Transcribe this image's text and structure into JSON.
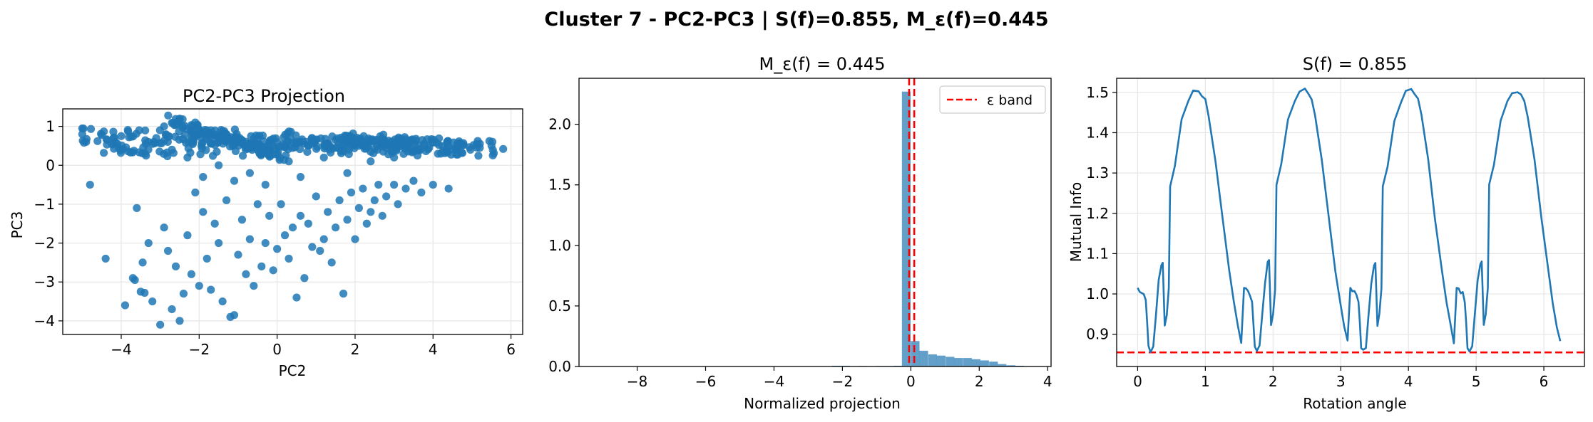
{
  "figure": {
    "suptitle": "Cluster 7 - PC2-PC3 | S(f)=0.855, M_ε(f)=0.445"
  },
  "colors": {
    "primary": "#1f77b4",
    "reference": "#ff0000",
    "grid": "#e6e6e6"
  },
  "chart_data": [
    {
      "type": "scatter",
      "title": "PC2-PC3 Projection",
      "xlabel": "PC2",
      "ylabel": "PC3",
      "xlim": [
        -5.5,
        6.3
      ],
      "ylim": [
        -4.35,
        1.45
      ],
      "xticks": [
        -4,
        -2,
        0,
        2,
        4,
        6
      ],
      "xtick_labels": [
        "−4",
        "−2",
        "0",
        "2",
        "4",
        "6"
      ],
      "yticks": [
        -4,
        -3,
        -2,
        -1,
        0,
        1
      ],
      "ytick_labels": [
        "−4",
        "−3",
        "−2",
        "−1",
        "0",
        "1"
      ],
      "grid": true,
      "color": "#1f77b4",
      "points": [
        [
          -5.0,
          0.8
        ],
        [
          -4.9,
          0.6
        ],
        [
          -4.8,
          -0.5
        ],
        [
          -4.5,
          0.78
        ],
        [
          -4.4,
          -2.4
        ],
        [
          -4.2,
          0.7
        ],
        [
          -4.0,
          0.75
        ],
        [
          -3.9,
          -3.6
        ],
        [
          -3.8,
          0.72
        ],
        [
          -3.7,
          -2.9
        ],
        [
          -3.65,
          -2.95
        ],
        [
          -3.6,
          -1.1
        ],
        [
          -3.5,
          -3.25
        ],
        [
          -3.45,
          -2.5
        ],
        [
          -3.4,
          -3.28
        ],
        [
          -3.3,
          -2.0
        ],
        [
          -3.2,
          -3.5
        ],
        [
          -3.1,
          0.7
        ],
        [
          -3.0,
          -4.1
        ],
        [
          -2.9,
          -1.6
        ],
        [
          -2.8,
          -2.2
        ],
        [
          -2.7,
          -3.7
        ],
        [
          -2.6,
          -2.6
        ],
        [
          -2.5,
          -4.0
        ],
        [
          -2.4,
          -3.3
        ],
        [
          -2.3,
          -1.8
        ],
        [
          -2.2,
          -2.8
        ],
        [
          -2.1,
          -0.7
        ],
        [
          -2.0,
          -3.1
        ],
        [
          -1.9,
          -1.2
        ],
        [
          -1.8,
          -2.4
        ],
        [
          -1.7,
          -3.2
        ],
        [
          -1.6,
          -1.5
        ],
        [
          -1.5,
          -2.0
        ],
        [
          -1.4,
          -3.5
        ],
        [
          -1.3,
          -0.9
        ],
        [
          -1.2,
          -3.9
        ],
        [
          -1.1,
          -3.85
        ],
        [
          -1.0,
          -2.3
        ],
        [
          -0.9,
          -1.4
        ],
        [
          -0.8,
          -2.8
        ],
        [
          -0.7,
          -1.9
        ],
        [
          -0.6,
          -3.1
        ],
        [
          -0.5,
          -1.0
        ],
        [
          -0.4,
          -2.6
        ],
        [
          -0.3,
          -2.0
        ],
        [
          -0.2,
          -1.3
        ],
        [
          -0.1,
          -2.7
        ],
        [
          0.0,
          -2.15
        ],
        [
          0.1,
          -1.0
        ],
        [
          0.2,
          -1.8
        ],
        [
          0.3,
          -2.4
        ],
        [
          0.4,
          -1.6
        ],
        [
          0.5,
          -3.4
        ],
        [
          0.6,
          -1.3
        ],
        [
          0.7,
          -2.9
        ],
        [
          0.8,
          -1.5
        ],
        [
          0.9,
          -2.1
        ],
        [
          1.0,
          -0.8
        ],
        [
          1.1,
          -2.2
        ],
        [
          1.2,
          -1.9
        ],
        [
          1.3,
          -1.2
        ],
        [
          1.4,
          -2.5
        ],
        [
          1.5,
          -1.6
        ],
        [
          1.6,
          -0.9
        ],
        [
          1.7,
          -3.3
        ],
        [
          1.8,
          -1.4
        ],
        [
          1.9,
          -0.7
        ],
        [
          2.0,
          -1.9
        ],
        [
          2.1,
          -1.1
        ],
        [
          2.2,
          -0.6
        ],
        [
          2.3,
          -1.5
        ],
        [
          2.4,
          -1.2
        ],
        [
          2.5,
          -0.9
        ],
        [
          2.6,
          -0.5
        ],
        [
          2.7,
          -1.3
        ],
        [
          2.8,
          -0.8
        ],
        [
          3.0,
          -0.5
        ],
        [
          3.1,
          -1.0
        ],
        [
          3.3,
          -0.6
        ],
        [
          3.5,
          -0.4
        ],
        [
          3.7,
          -0.7
        ],
        [
          4.0,
          -0.5
        ],
        [
          4.4,
          -0.6
        ],
        [
          5.2,
          0.45
        ],
        [
          5.5,
          0.5
        ],
        [
          5.8,
          0.42
        ],
        [
          -3.3,
          0.6
        ],
        [
          -2.9,
          1.0
        ],
        [
          -2.7,
          0.4
        ],
        [
          -2.5,
          1.2
        ],
        [
          -2.3,
          0.2
        ],
        [
          -2.1,
          1.1
        ],
        [
          -1.9,
          -0.3
        ],
        [
          -1.7,
          0.9
        ],
        [
          -1.5,
          0.0
        ],
        [
          -1.3,
          0.8
        ],
        [
          -1.1,
          -0.4
        ],
        [
          -0.9,
          0.6
        ],
        [
          -0.7,
          -0.2
        ],
        [
          -0.5,
          0.7
        ],
        [
          -0.3,
          -0.5
        ],
        [
          -0.1,
          0.5
        ],
        [
          0.3,
          0.1
        ],
        [
          0.6,
          -0.3
        ],
        [
          0.9,
          0.6
        ],
        [
          1.2,
          0.2
        ],
        [
          1.5,
          0.65
        ],
        [
          1.8,
          -0.2
        ],
        [
          2.1,
          0.5
        ],
        [
          2.4,
          0.1
        ],
        [
          2.7,
          0.55
        ],
        [
          3.0,
          0.2
        ],
        [
          3.3,
          0.5
        ],
        [
          3.6,
          0.25
        ],
        [
          3.9,
          0.45
        ],
        [
          4.2,
          0.3
        ],
        [
          4.6,
          0.4
        ]
      ],
      "dense_bands": [
        {
          "from": [
            -5.0,
            0.78
          ],
          "to": [
            5.6,
            0.42
          ],
          "spread": 0.2,
          "count": 180
        },
        {
          "from": [
            -2.8,
            1.2
          ],
          "to": [
            0.2,
            0.2
          ],
          "spread": 0.12,
          "count": 90
        },
        {
          "from": [
            -4.5,
            0.4
          ],
          "to": [
            4.8,
            0.5
          ],
          "spread": 0.2,
          "count": 120
        },
        {
          "from": [
            -2.2,
            0.75
          ],
          "to": [
            3.8,
            0.55
          ],
          "spread": 0.22,
          "count": 120
        }
      ]
    },
    {
      "type": "bar",
      "title": "M_ε(f) = 0.445",
      "xlabel": "Normalized projection",
      "ylabel": "",
      "xlim": [
        -9.7,
        4.1
      ],
      "ylim": [
        0,
        2.38
      ],
      "xticks": [
        -8,
        -6,
        -4,
        -2,
        0,
        2,
        4
      ],
      "xtick_labels": [
        "−8",
        "−6",
        "−4",
        "−2",
        "0",
        "2",
        "4"
      ],
      "yticks": [
        0.0,
        0.5,
        1.0,
        1.5,
        2.0
      ],
      "ytick_labels": [
        "0.0",
        "0.5",
        "1.0",
        "1.5",
        "2.0"
      ],
      "grid": false,
      "color": "#1f77b4",
      "bin_width": 0.254,
      "bins": [
        [
          -9.2,
          0.002
        ],
        [
          -8.2,
          0.002
        ],
        [
          -6.1,
          0.002
        ],
        [
          -4.3,
          0.003
        ],
        [
          -2.8,
          0.003
        ],
        [
          -2.3,
          0.006
        ],
        [
          -2.03,
          0.006
        ],
        [
          -1.53,
          0.004
        ],
        [
          -1.02,
          0.004
        ],
        [
          -0.77,
          0.004
        ],
        [
          -0.51,
          0.006
        ],
        [
          -0.26,
          2.27
        ],
        [
          0.0,
          0.21
        ],
        [
          0.25,
          0.13
        ],
        [
          0.51,
          0.1
        ],
        [
          0.76,
          0.09
        ],
        [
          1.02,
          0.08
        ],
        [
          1.27,
          0.07
        ],
        [
          1.53,
          0.07
        ],
        [
          1.78,
          0.06
        ],
        [
          2.03,
          0.05
        ],
        [
          2.29,
          0.04
        ],
        [
          2.54,
          0.02
        ],
        [
          2.8,
          0.01
        ],
        [
          3.05,
          0.006
        ],
        [
          3.31,
          0.003
        ]
      ],
      "epsilon_lines": [
        -0.05,
        0.1
      ],
      "legend": {
        "label": "ε band",
        "position": "upper right"
      }
    },
    {
      "type": "line",
      "title": "S(f) = 0.855",
      "xlabel": "Rotation angle",
      "ylabel": "Mutual Info",
      "xlim": [
        -0.31,
        6.6
      ],
      "ylim": [
        0.82,
        1.535
      ],
      "xticks": [
        0,
        1,
        2,
        3,
        4,
        5,
        6
      ],
      "xtick_labels": [
        "0",
        "1",
        "2",
        "3",
        "4",
        "5",
        "6"
      ],
      "yticks": [
        0.9,
        1.0,
        1.1,
        1.2,
        1.3,
        1.4,
        1.5
      ],
      "ytick_labels": [
        "0.9",
        "1.0",
        "1.1",
        "1.2",
        "1.3",
        "1.4",
        "1.5"
      ],
      "grid": true,
      "color": "#1f77b4",
      "hline": 0.855,
      "period": 1.5708,
      "x_end": 6.283,
      "profile": [
        [
          0.0,
          1.015
        ],
        [
          0.03,
          1.01
        ],
        [
          0.06,
          1.005
        ],
        [
          0.09,
          1.0
        ],
        [
          0.12,
          0.98
        ],
        [
          0.14,
          0.93
        ],
        [
          0.16,
          0.87
        ],
        [
          0.19,
          0.86
        ],
        [
          0.23,
          0.87
        ],
        [
          0.27,
          0.95
        ],
        [
          0.31,
          1.03
        ],
        [
          0.35,
          1.075
        ],
        [
          0.37,
          1.08
        ],
        [
          0.4,
          0.92
        ],
        [
          0.43,
          0.95
        ],
        [
          0.46,
          1.01
        ],
        [
          0.48,
          1.27
        ],
        [
          0.55,
          1.32
        ],
        [
          0.65,
          1.43
        ],
        [
          0.75,
          1.48
        ],
        [
          0.82,
          1.5
        ],
        [
          0.9,
          1.505
        ],
        [
          0.95,
          1.495
        ],
        [
          1.0,
          1.48
        ],
        [
          1.05,
          1.44
        ],
        [
          1.15,
          1.33
        ],
        [
          1.25,
          1.19
        ],
        [
          1.35,
          1.06
        ],
        [
          1.42,
          0.98
        ],
        [
          1.48,
          0.92
        ],
        [
          1.53,
          0.88
        ],
        [
          1.5708,
          1.015
        ]
      ]
    }
  ]
}
